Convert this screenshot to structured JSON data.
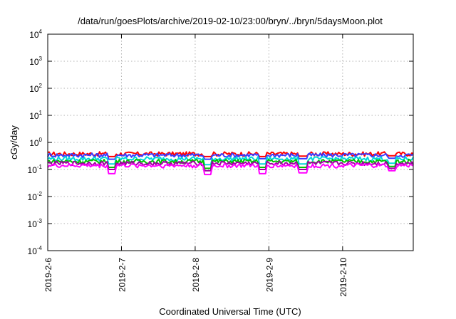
{
  "chart_data": {
    "type": "line",
    "title": "/data/run/goesPlots/archive/2019-02-10/23:00/bryn/../bryn/5daysMoon.plot",
    "xlabel": "Coordinated Universal Time (UTC)",
    "ylabel": "cGy/day",
    "yscale": "log",
    "ylim": [
      0.0001,
      10000
    ],
    "xlim": [
      "2019-02-06T00:00",
      "2019-02-10T23:00"
    ],
    "grid": true,
    "legend": "none",
    "x_ticks": [
      "2019-2-6",
      "2019-2-7",
      "2019-2-8",
      "2019-2-9",
      "2019-2-10"
    ],
    "y_ticks": [
      {
        "base": "10",
        "exp": "4"
      },
      {
        "base": "10",
        "exp": "3"
      },
      {
        "base": "10",
        "exp": "2"
      },
      {
        "base": "10",
        "exp": "1"
      },
      {
        "base": "10",
        "exp": "0"
      },
      {
        "base": "10",
        "exp": "-1"
      },
      {
        "base": "10",
        "exp": "-2"
      },
      {
        "base": "10",
        "exp": "-3"
      },
      {
        "base": "10",
        "exp": "-4"
      }
    ],
    "series": [
      {
        "color": "#ff0000",
        "base": 0.38
      },
      {
        "color": "#3b3bff",
        "base": 0.34
      },
      {
        "color": "#00d8d8",
        "base": 0.25
      },
      {
        "color": "#00c000",
        "base": 0.2
      },
      {
        "color": "#a000a0",
        "base": 0.17
      },
      {
        "color": "#ff00ff",
        "base": 0.14
      }
    ],
    "dips": [
      {
        "x": "2019-02-06T21:00",
        "values": [
          0.3,
          0.24,
          0.16,
          0.12,
          0.1,
          0.07
        ]
      },
      {
        "x": "2019-02-08T04:00",
        "values": [
          0.3,
          0.24,
          0.15,
          0.11,
          0.09,
          0.065
        ]
      },
      {
        "x": "2019-02-08T22:00",
        "values": [
          0.3,
          0.25,
          0.16,
          0.12,
          0.1,
          0.07
        ]
      },
      {
        "x": "2019-02-09T11:00",
        "values": [
          0.31,
          0.25,
          0.16,
          0.12,
          0.1,
          0.075
        ]
      },
      {
        "x": "2019-02-10T16:00",
        "values": [
          0.32,
          0.26,
          0.17,
          0.13,
          0.11,
          0.09
        ]
      }
    ]
  }
}
